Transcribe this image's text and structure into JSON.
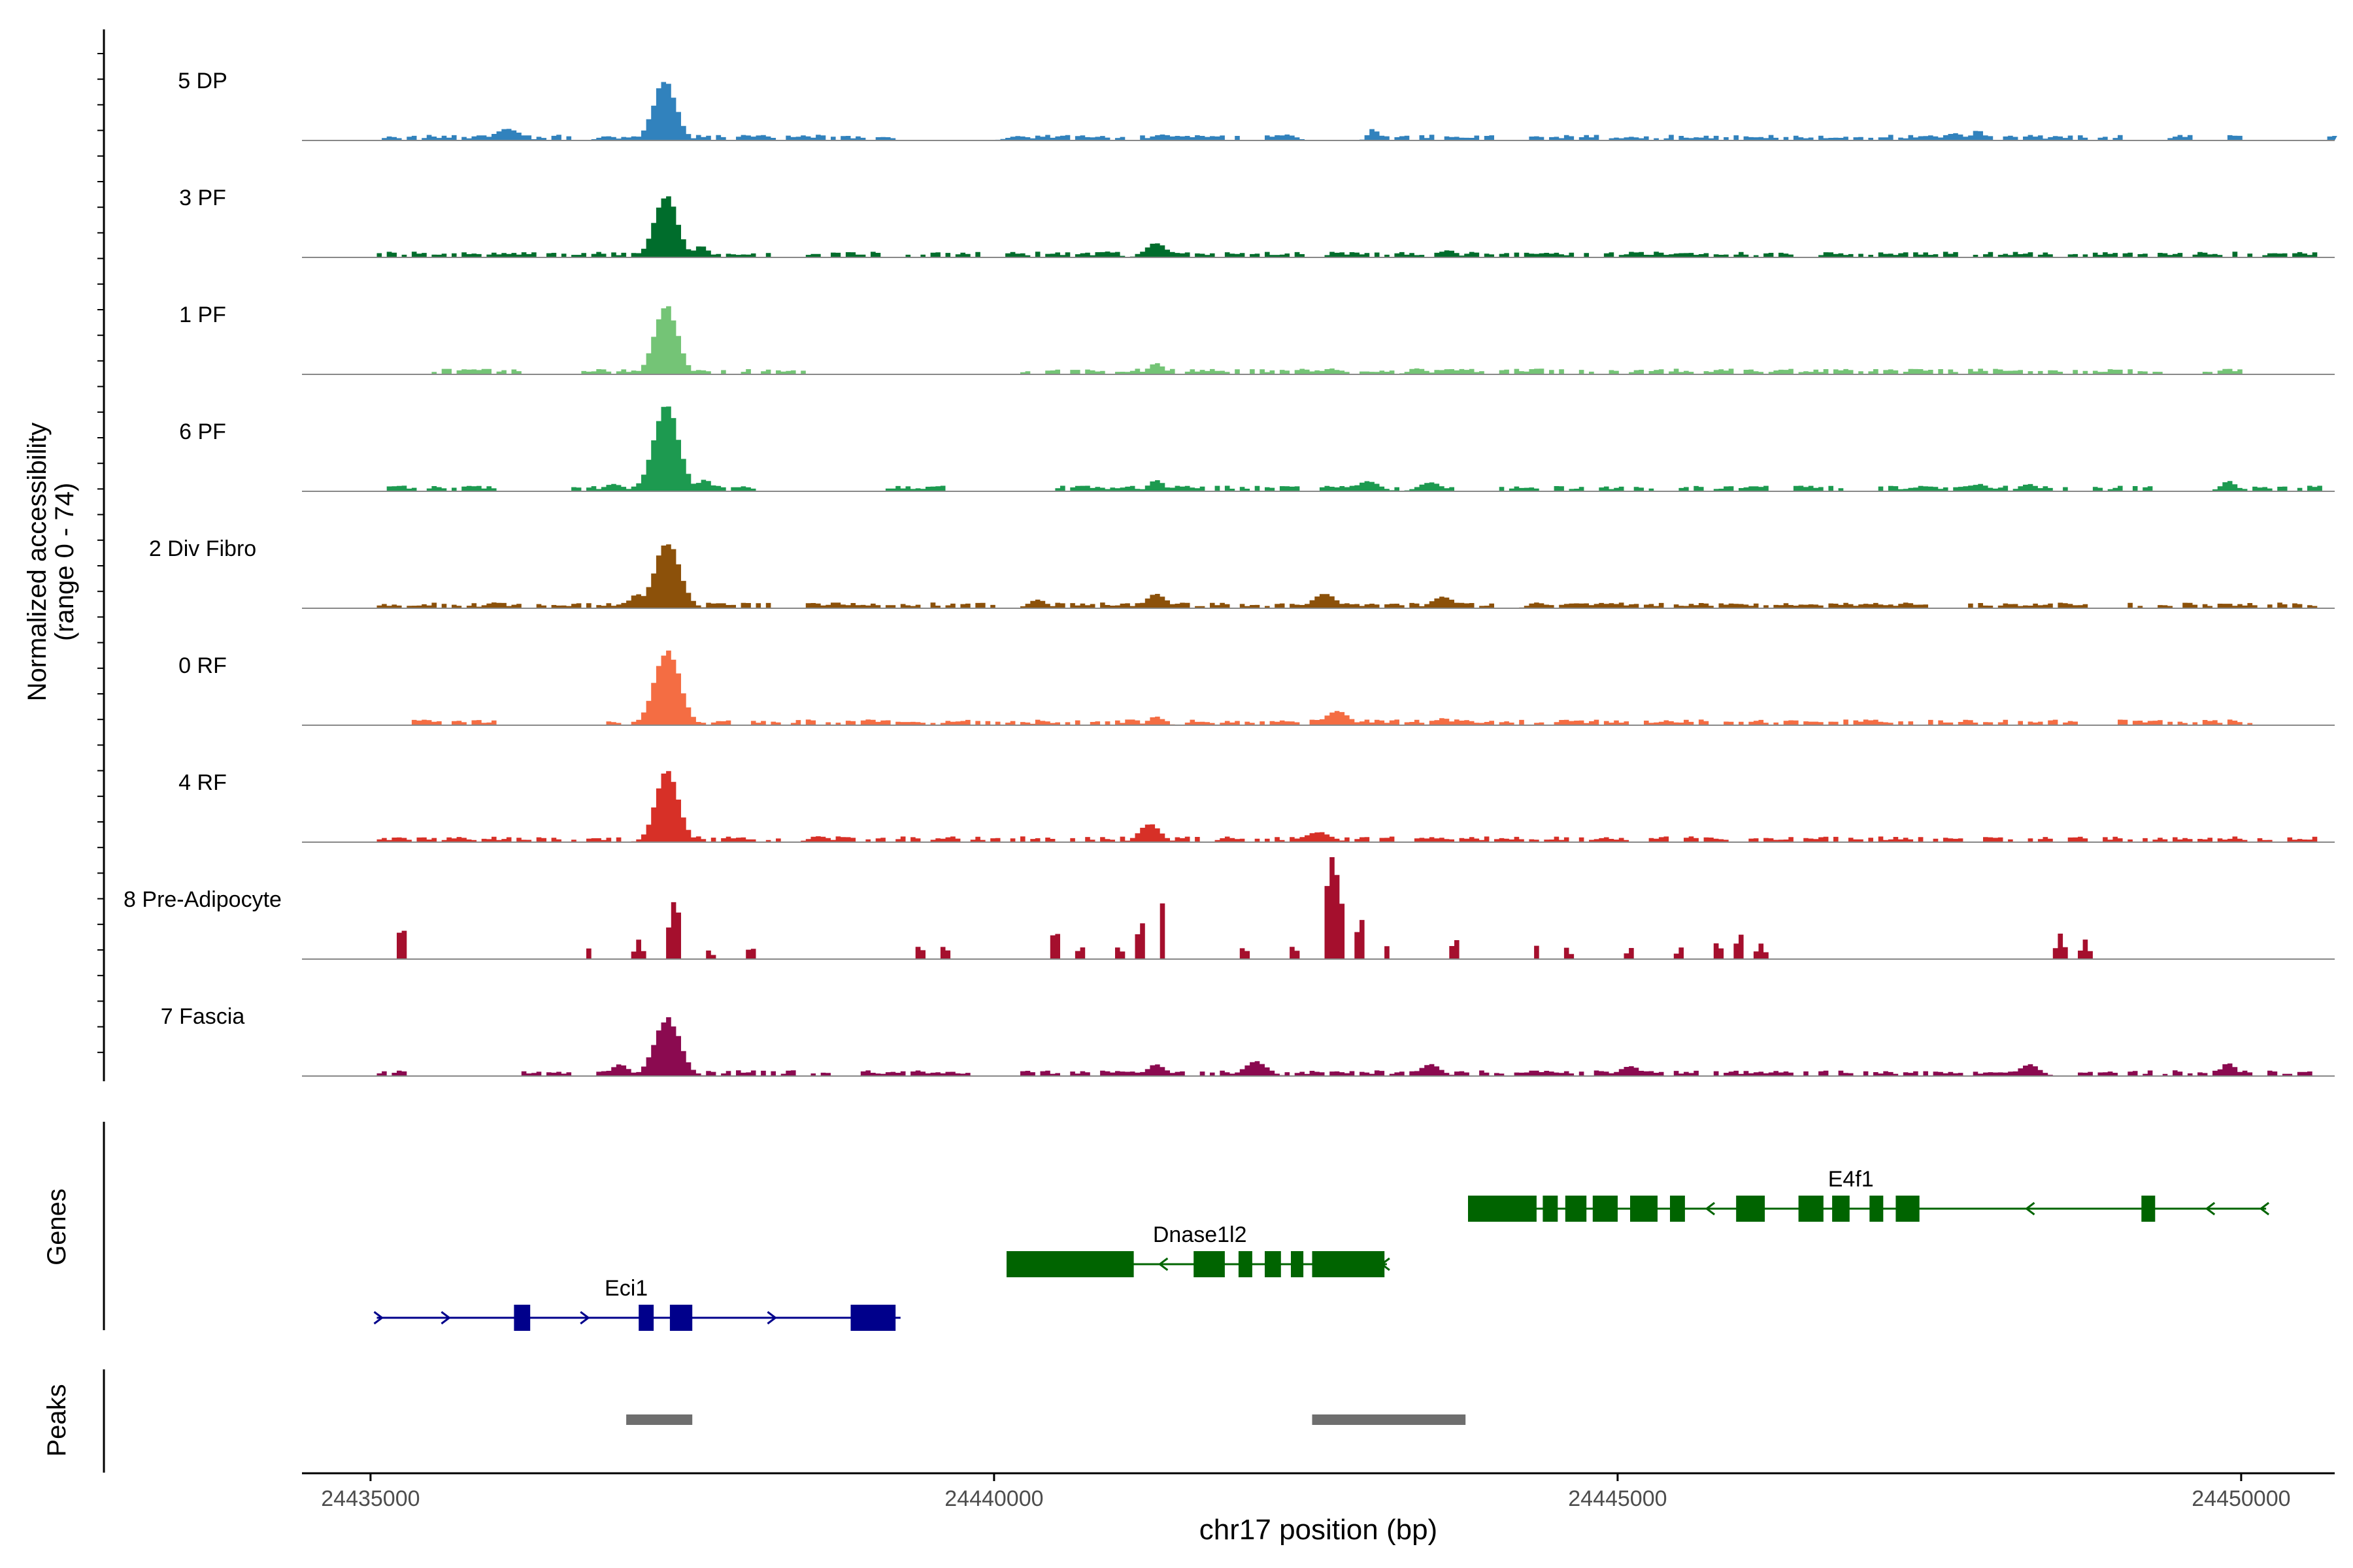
{
  "chart_data": {
    "type": "area",
    "title": "",
    "ylabel": "Normalized accessibility",
    "ylabel_range": "(range 0 - 74)",
    "ylim": [
      0,
      74
    ],
    "xlabel": "chr17 position (bp)",
    "xlim": [
      24434450,
      24450750
    ],
    "x_ticks": [
      24435000,
      24440000,
      24445000,
      24450000
    ],
    "x_tick_labels": [
      "24435000",
      "24440000",
      "24445000",
      "24450000"
    ],
    "panel_labels": {
      "genes": "Genes",
      "peaks": "Peaks"
    },
    "track_style": {
      "bin_bp": 40,
      "noise_seed": 7
    },
    "tracks": [
      {
        "name": "5 DP",
        "color": "#3182BD",
        "bg_regions": [
          [
            24435050,
            24436600
          ],
          [
            24437000,
            24439200
          ],
          [
            24440200,
            24442300
          ],
          [
            24443100,
            24444000
          ],
          [
            24444300,
            24448000
          ],
          [
            24448100,
            24448400
          ],
          [
            24448600,
            24449100
          ],
          [
            24449400,
            24449700
          ],
          [
            24449900,
            24450000
          ],
          [
            24450700,
            24450800
          ]
        ],
        "peaks": [
          {
            "c": 24437360,
            "h": 41,
            "w": 90
          },
          {
            "c": 24436100,
            "h": 8,
            "w": 100
          },
          {
            "c": 24436900,
            "h": 3,
            "w": 70
          },
          {
            "c": 24440200,
            "h": 3,
            "w": 90
          },
          {
            "c": 24441350,
            "h": 4,
            "w": 90
          },
          {
            "c": 24442350,
            "h": 4,
            "w": 70
          },
          {
            "c": 24443040,
            "h": 8,
            "w": 40
          },
          {
            "c": 24447700,
            "h": 5,
            "w": 80
          },
          {
            "c": 24447890,
            "h": 7,
            "w": 50
          },
          {
            "c": 24448520,
            "h": 3,
            "w": 70
          }
        ]
      },
      {
        "name": "3 PF",
        "color": "#006D2C",
        "bg_regions": [
          [
            24435050,
            24436600
          ],
          [
            24436600,
            24438200
          ],
          [
            24438500,
            24439100
          ],
          [
            24439300,
            24439900
          ],
          [
            24440100,
            24442500
          ],
          [
            24442600,
            24445000
          ],
          [
            24445000,
            24448500
          ],
          [
            24448600,
            24450600
          ]
        ],
        "peaks": [
          {
            "c": 24437370,
            "h": 43,
            "w": 90
          },
          {
            "c": 24437650,
            "h": 8,
            "w": 60
          },
          {
            "c": 24441300,
            "h": 10,
            "w": 80
          },
          {
            "c": 24443650,
            "h": 5,
            "w": 60
          },
          {
            "c": 24440900,
            "h": 4,
            "w": 80
          }
        ]
      },
      {
        "name": "1 PF",
        "color": "#74C476",
        "bg_regions": [
          [
            24435450,
            24436200
          ],
          [
            24436700,
            24437900
          ],
          [
            24437900,
            24438500
          ],
          [
            24440200,
            24445600
          ],
          [
            24445700,
            24447800
          ],
          [
            24447800,
            24449400
          ],
          [
            24449700,
            24450000
          ]
        ],
        "peaks": [
          {
            "c": 24437370,
            "h": 48,
            "w": 90
          },
          {
            "c": 24441300,
            "h": 8,
            "w": 60
          },
          {
            "c": 24442700,
            "h": 4,
            "w": 70
          },
          {
            "c": 24443400,
            "h": 4,
            "w": 70
          }
        ]
      },
      {
        "name": "6 PF",
        "color": "#1D9A50",
        "bg_regions": [
          [
            24435050,
            24436000
          ],
          [
            24436600,
            24438100
          ],
          [
            24439050,
            24439600
          ],
          [
            24440450,
            24443700
          ],
          [
            24444000,
            24445300
          ],
          [
            24445500,
            24446200
          ],
          [
            24446400,
            24446800
          ],
          [
            24447000,
            24448600
          ],
          [
            24448800,
            24449300
          ],
          [
            24450000,
            24450700
          ]
        ],
        "peaks": [
          {
            "c": 24437370,
            "h": 60,
            "w": 100
          },
          {
            "c": 24437680,
            "h": 8,
            "w": 60
          },
          {
            "c": 24436950,
            "h": 5,
            "w": 80
          },
          {
            "c": 24441300,
            "h": 8,
            "w": 60
          },
          {
            "c": 24443000,
            "h": 7,
            "w": 90
          },
          {
            "c": 24443500,
            "h": 6,
            "w": 90
          },
          {
            "c": 24447900,
            "h": 5,
            "w": 70
          },
          {
            "c": 24448300,
            "h": 5,
            "w": 70
          },
          {
            "c": 24449900,
            "h": 7,
            "w": 60
          }
        ]
      },
      {
        "name": "2 Div Fibro",
        "color": "#8C510A",
        "bg_regions": [
          [
            24435050,
            24436800
          ],
          [
            24436800,
            24438200
          ],
          [
            24438500,
            24440000
          ],
          [
            24440200,
            24444000
          ],
          [
            24444300,
            24445000
          ],
          [
            24445000,
            24447500
          ],
          [
            24447800,
            24448800
          ],
          [
            24449100,
            24450600
          ]
        ],
        "peaks": [
          {
            "c": 24437380,
            "h": 45,
            "w": 100
          },
          {
            "c": 24437150,
            "h": 10,
            "w": 70
          },
          {
            "c": 24441300,
            "h": 10,
            "w": 80
          },
          {
            "c": 24442650,
            "h": 10,
            "w": 90
          },
          {
            "c": 24443600,
            "h": 8,
            "w": 90
          },
          {
            "c": 24444350,
            "h": 4,
            "w": 60
          },
          {
            "c": 24436000,
            "h": 4,
            "w": 80
          },
          {
            "c": 24440350,
            "h": 6,
            "w": 70
          }
        ]
      },
      {
        "name": "0 RF",
        "color": "#F46D43",
        "bg_regions": [
          [
            24435300,
            24436000
          ],
          [
            24436900,
            24437900
          ],
          [
            24438000,
            24445000
          ],
          [
            24445000,
            24448700
          ],
          [
            24449000,
            24450100
          ]
        ],
        "peaks": [
          {
            "c": 24437380,
            "h": 52,
            "w": 100
          },
          {
            "c": 24441300,
            "h": 6,
            "w": 60
          },
          {
            "c": 24442750,
            "h": 10,
            "w": 90
          },
          {
            "c": 24443600,
            "h": 5,
            "w": 60
          },
          {
            "c": 24440400,
            "h": 3,
            "w": 60
          }
        ]
      },
      {
        "name": "4 RF",
        "color": "#D73027",
        "bg_regions": [
          [
            24435050,
            24437000
          ],
          [
            24437000,
            24438300
          ],
          [
            24438500,
            24440500
          ],
          [
            24440600,
            24442000
          ],
          [
            24442100,
            24450600
          ]
        ],
        "peaks": [
          {
            "c": 24437380,
            "h": 49,
            "w": 90
          },
          {
            "c": 24441250,
            "h": 13,
            "w": 80
          },
          {
            "c": 24442600,
            "h": 7,
            "w": 100
          },
          {
            "c": 24438600,
            "h": 4,
            "w": 80
          }
        ]
      },
      {
        "name": "8 Pre-Adipocyte",
        "color": "#A50F2D",
        "bg_regions": [],
        "peaks": [
          {
            "c": 24435250,
            "h": 25,
            "w": 40
          },
          {
            "c": 24436750,
            "h": 8,
            "w": 30
          },
          {
            "c": 24437150,
            "h": 13,
            "w": 40
          },
          {
            "c": 24437440,
            "h": 40,
            "w": 60
          },
          {
            "c": 24437720,
            "h": 7,
            "w": 30
          },
          {
            "c": 24438050,
            "h": 9,
            "w": 35
          },
          {
            "c": 24439400,
            "h": 10,
            "w": 40
          },
          {
            "c": 24439600,
            "h": 9,
            "w": 40
          },
          {
            "c": 24440490,
            "h": 20,
            "w": 50
          },
          {
            "c": 24440700,
            "h": 9,
            "w": 40
          },
          {
            "c": 24441000,
            "h": 9,
            "w": 35
          },
          {
            "c": 24441180,
            "h": 26,
            "w": 40
          },
          {
            "c": 24441350,
            "h": 38,
            "w": 30
          },
          {
            "c": 24442000,
            "h": 9,
            "w": 40
          },
          {
            "c": 24442400,
            "h": 9,
            "w": 40
          },
          {
            "c": 24442720,
            "h": 72,
            "w": 80
          },
          {
            "c": 24442940,
            "h": 28,
            "w": 40
          },
          {
            "c": 24443150,
            "h": 9,
            "w": 35
          },
          {
            "c": 24443700,
            "h": 14,
            "w": 40
          },
          {
            "c": 24444350,
            "h": 9,
            "w": 30
          },
          {
            "c": 24444600,
            "h": 9,
            "w": 30
          },
          {
            "c": 24445100,
            "h": 9,
            "w": 30
          },
          {
            "c": 24445500,
            "h": 9,
            "w": 30
          },
          {
            "c": 24445800,
            "h": 12,
            "w": 40
          },
          {
            "c": 24445980,
            "h": 18,
            "w": 40
          },
          {
            "c": 24446150,
            "h": 12,
            "w": 40
          },
          {
            "c": 24448550,
            "h": 18,
            "w": 40
          },
          {
            "c": 24448750,
            "h": 14,
            "w": 40
          }
        ]
      },
      {
        "name": "7 Fascia",
        "color": "#8B0A50",
        "bg_regions": [
          [
            24435050,
            24435300
          ],
          [
            24436200,
            24436600
          ],
          [
            24436800,
            24438700
          ],
          [
            24438900,
            24439800
          ],
          [
            24440200,
            24445000
          ],
          [
            24445000,
            24446400
          ],
          [
            24446500,
            24448400
          ],
          [
            24448600,
            24450000
          ],
          [
            24450000,
            24450600
          ]
        ],
        "peaks": [
          {
            "c": 24437380,
            "h": 40,
            "w": 100
          },
          {
            "c": 24437000,
            "h": 8,
            "w": 70
          },
          {
            "c": 24441300,
            "h": 8,
            "w": 70
          },
          {
            "c": 24442100,
            "h": 10,
            "w": 90
          },
          {
            "c": 24443500,
            "h": 8,
            "w": 80
          },
          {
            "c": 24445100,
            "h": 7,
            "w": 80
          },
          {
            "c": 24448300,
            "h": 8,
            "w": 80
          },
          {
            "c": 24449900,
            "h": 9,
            "w": 60
          }
        ]
      }
    ],
    "genes": [
      {
        "name": "Eci1",
        "color": "#00008B",
        "strand": "+",
        "row": 2,
        "start": 24435050,
        "end": 24439250,
        "exons": [
          [
            24436150,
            24436280
          ],
          [
            24437150,
            24437270
          ],
          [
            24437400,
            24437580
          ],
          [
            24438850,
            24439210
          ]
        ]
      },
      {
        "name": "Dnase1l2",
        "color": "#006400",
        "strand": "-",
        "row": 1,
        "start": 24440100,
        "end": 24443150,
        "exons": [
          [
            24440100,
            24441120
          ],
          [
            24441600,
            24441850
          ],
          [
            24441960,
            24442070
          ],
          [
            24442170,
            24442300
          ],
          [
            24442380,
            24442480
          ],
          [
            24442550,
            24443130
          ]
        ]
      },
      {
        "name": "E4f1",
        "color": "#006400",
        "strand": "-",
        "row": 0,
        "start": 24443800,
        "end": 24450200,
        "exons": [
          [
            24443800,
            24444350
          ],
          [
            24444400,
            24444520
          ],
          [
            24444580,
            24444750
          ],
          [
            24444800,
            24445000
          ],
          [
            24445100,
            24445320
          ],
          [
            24445420,
            24445540
          ],
          [
            24445950,
            24446180
          ],
          [
            24446450,
            24446650
          ],
          [
            24446720,
            24446860
          ],
          [
            24447020,
            24447130
          ],
          [
            24447230,
            24447420
          ],
          [
            24449200,
            24449310
          ]
        ]
      }
    ],
    "peak_regions": [
      [
        24437050,
        24437580
      ],
      [
        24442550,
        24443780
      ]
    ]
  }
}
